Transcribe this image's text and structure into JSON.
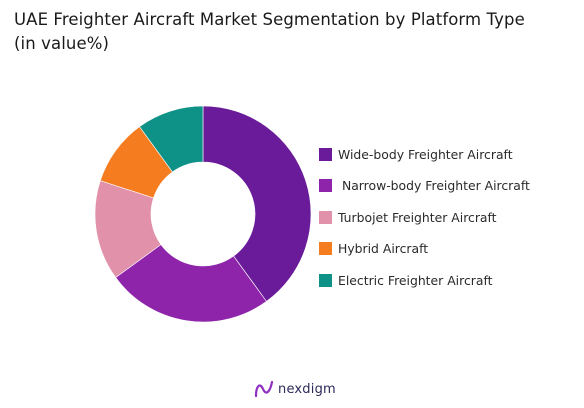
{
  "header": {
    "title_line1": "UAE Freighter Aircraft Market Segmentation by Platform Type",
    "title_line2": "(in value%)"
  },
  "chart_data": {
    "type": "pie",
    "donut": true,
    "title": "UAE Freighter Aircraft Market Segmentation by Platform Type (in value%)",
    "legend_position": "right",
    "categories": [
      "Wide-body Freighter Aircraft",
      " Narrow-body Freighter Aircraft",
      "Turbojet Freighter Aircraft",
      "Hybrid Aircraft",
      "Electric Freighter Aircraft"
    ],
    "values": [
      40,
      25,
      15,
      10,
      10
    ],
    "colors": [
      "#6a1b9a",
      "#8e24aa",
      "#e191a9",
      "#f57c1f",
      "#0e9288"
    ]
  },
  "brand": {
    "name": "nexdigm",
    "logo_icon": "nexdigm-logo-icon"
  }
}
